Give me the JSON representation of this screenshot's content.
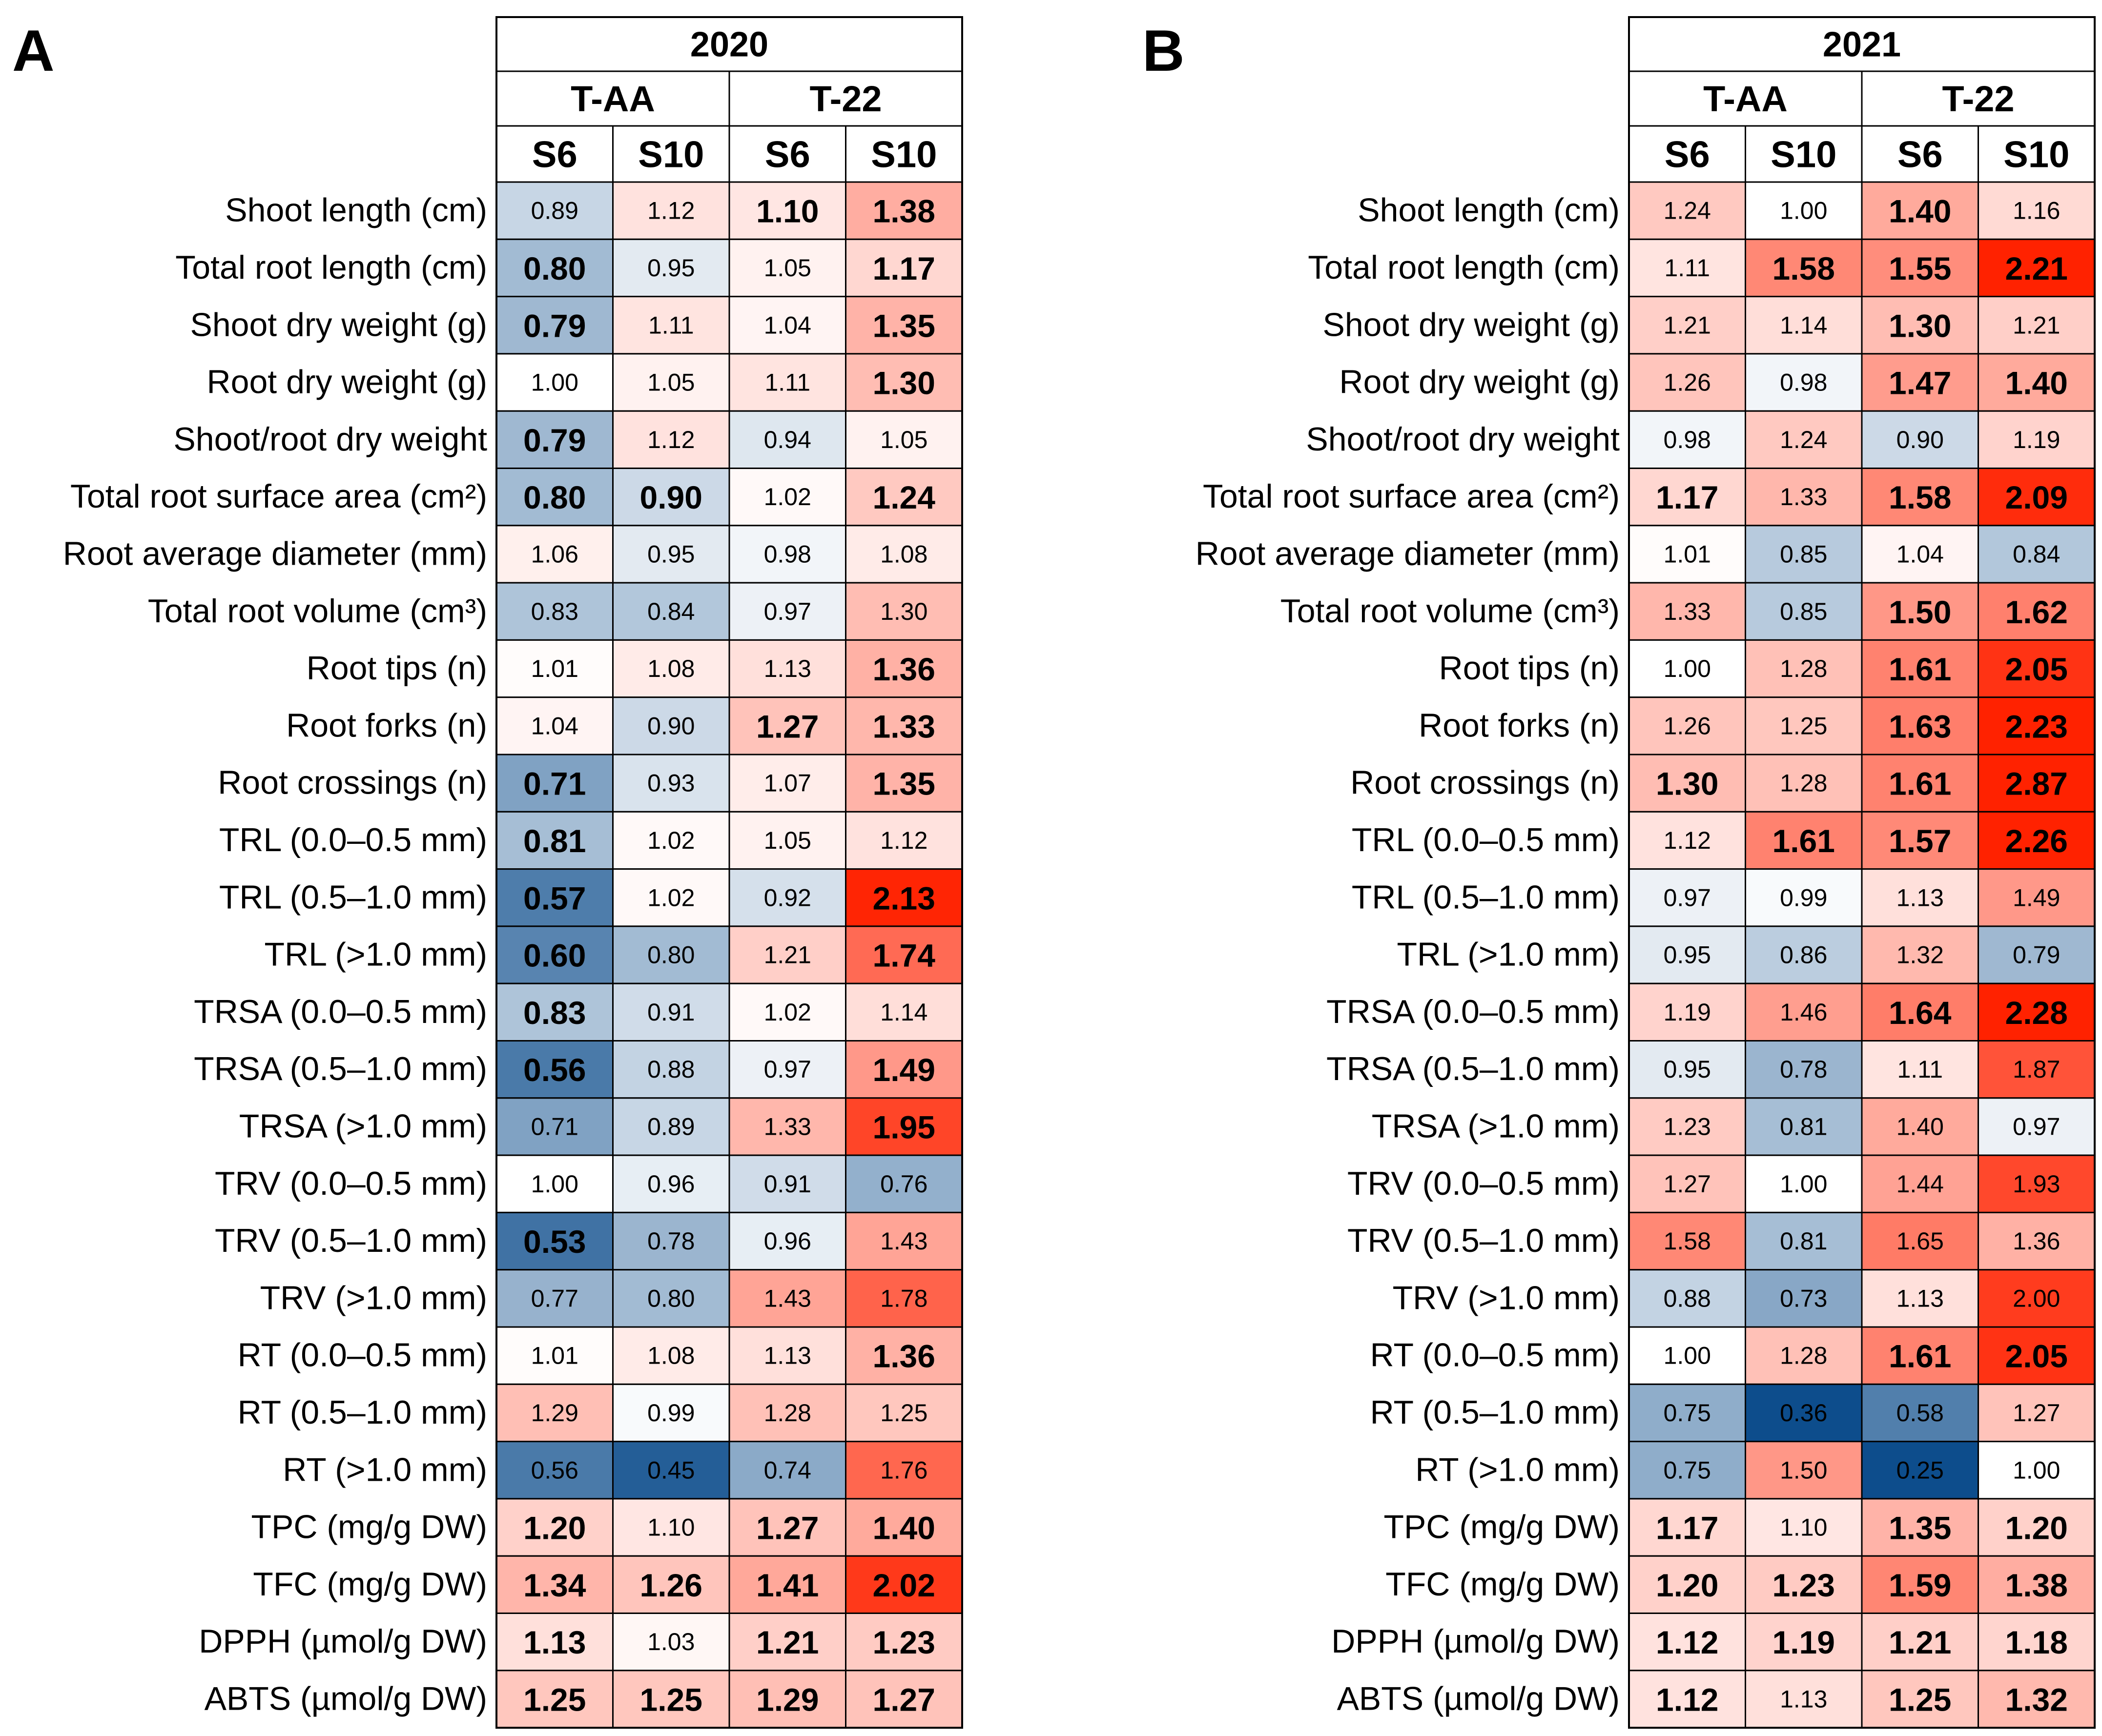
{
  "colors": {
    "low_extreme": "#0d4d8c",
    "mid": "#ffffff",
    "high_extreme": "#ff2200",
    "border": "#000000",
    "text": "#000000"
  },
  "chart_data": [
    {
      "type": "heatmap",
      "panel_label": "A",
      "year": "2020",
      "groups": [
        "T-AA",
        "T-22"
      ],
      "columns": [
        "S6",
        "S10",
        "S6",
        "S10"
      ],
      "rows": [
        "Shoot length (cm)",
        "Total root length (cm)",
        "Shoot dry weight (g)",
        "Root dry weight (g)",
        "Shoot/root dry weight",
        "Total root surface area (cm²)",
        "Root average diameter (mm)",
        "Total root volume (cm³)",
        "Root tips (n)",
        "Root forks (n)",
        "Root crossings (n)",
        "TRL (0.0–0.5 mm)",
        "TRL (0.5–1.0 mm)",
        "TRL (>1.0 mm)",
        "TRSA (0.0–0.5 mm)",
        "TRSA (0.5–1.0 mm)",
        "TRSA (>1.0 mm)",
        "TRV (0.0–0.5 mm)",
        "TRV (0.5–1.0 mm)",
        "TRV (>1.0 mm)",
        "RT (0.0–0.5 mm)",
        "RT (0.5–1.0 mm)",
        "RT (>1.0 mm)",
        "TPC (mg/g DW)",
        "TFC (mg/g DW)",
        "DPPH (µmol/g DW)",
        "ABTS (µmol/g DW)"
      ],
      "values": [
        [
          0.89,
          1.12,
          1.1,
          1.38
        ],
        [
          0.8,
          0.95,
          1.05,
          1.17
        ],
        [
          0.79,
          1.11,
          1.04,
          1.35
        ],
        [
          1.0,
          1.05,
          1.11,
          1.3
        ],
        [
          0.79,
          1.12,
          0.94,
          1.05
        ],
        [
          0.8,
          0.9,
          1.02,
          1.24
        ],
        [
          1.06,
          0.95,
          0.98,
          1.08
        ],
        [
          0.83,
          0.84,
          0.97,
          1.3
        ],
        [
          1.01,
          1.08,
          1.13,
          1.36
        ],
        [
          1.04,
          0.9,
          1.27,
          1.33
        ],
        [
          0.71,
          0.93,
          1.07,
          1.35
        ],
        [
          0.81,
          1.02,
          1.05,
          1.12
        ],
        [
          0.57,
          1.02,
          0.92,
          2.13
        ],
        [
          0.6,
          0.8,
          1.21,
          1.74
        ],
        [
          0.83,
          0.91,
          1.02,
          1.14
        ],
        [
          0.56,
          0.88,
          0.97,
          1.49
        ],
        [
          0.71,
          0.89,
          1.33,
          1.95
        ],
        [
          1.0,
          0.96,
          0.91,
          0.76
        ],
        [
          0.53,
          0.78,
          0.96,
          1.43
        ],
        [
          0.77,
          0.8,
          1.43,
          1.78
        ],
        [
          1.01,
          1.08,
          1.13,
          1.36
        ],
        [
          1.29,
          0.99,
          1.28,
          1.25
        ],
        [
          0.56,
          0.45,
          0.74,
          1.76
        ],
        [
          1.2,
          1.1,
          1.27,
          1.4
        ],
        [
          1.34,
          1.26,
          1.41,
          2.02
        ],
        [
          1.13,
          1.03,
          1.21,
          1.23
        ],
        [
          1.25,
          1.25,
          1.29,
          1.27
        ]
      ],
      "bold": [
        [
          0,
          0,
          1,
          1
        ],
        [
          1,
          0,
          0,
          1
        ],
        [
          1,
          0,
          0,
          1
        ],
        [
          0,
          0,
          0,
          1
        ],
        [
          1,
          0,
          0,
          0
        ],
        [
          1,
          1,
          0,
          1
        ],
        [
          0,
          0,
          0,
          0
        ],
        [
          0,
          0,
          0,
          0
        ],
        [
          0,
          0,
          0,
          1
        ],
        [
          0,
          0,
          1,
          1
        ],
        [
          1,
          0,
          0,
          1
        ],
        [
          1,
          0,
          0,
          0
        ],
        [
          1,
          0,
          0,
          1
        ],
        [
          1,
          0,
          0,
          1
        ],
        [
          1,
          0,
          0,
          0
        ],
        [
          1,
          0,
          0,
          1
        ],
        [
          0,
          0,
          0,
          1
        ],
        [
          0,
          0,
          0,
          0
        ],
        [
          1,
          0,
          0,
          0
        ],
        [
          0,
          0,
          0,
          0
        ],
        [
          0,
          0,
          0,
          1
        ],
        [
          0,
          0,
          0,
          0
        ],
        [
          0,
          0,
          0,
          0
        ],
        [
          1,
          0,
          1,
          1
        ],
        [
          1,
          1,
          1,
          1
        ],
        [
          1,
          0,
          1,
          1
        ],
        [
          1,
          1,
          1,
          1
        ]
      ]
    },
    {
      "type": "heatmap",
      "panel_label": "B",
      "year": "2021",
      "groups": [
        "T-AA",
        "T-22"
      ],
      "columns": [
        "S6",
        "S10",
        "S6",
        "S10"
      ],
      "rows": [
        "Shoot length (cm)",
        "Total root length (cm)",
        "Shoot dry weight (g)",
        "Root dry weight (g)",
        "Shoot/root dry weight",
        "Total root surface area (cm²)",
        "Root average diameter (mm)",
        "Total root volume (cm³)",
        "Root tips (n)",
        "Root forks (n)",
        "Root crossings (n)",
        "TRL (0.0–0.5 mm)",
        "TRL (0.5–1.0 mm)",
        "TRL (>1.0 mm)",
        "TRSA (0.0–0.5 mm)",
        "TRSA (0.5–1.0 mm)",
        "TRSA (>1.0 mm)",
        "TRV (0.0–0.5 mm)",
        "TRV (0.5–1.0 mm)",
        "TRV (>1.0 mm)",
        "RT (0.0–0.5 mm)",
        "RT (0.5–1.0 mm)",
        "RT (>1.0 mm)",
        "TPC (mg/g DW)",
        "TFC (mg/g DW)",
        "DPPH (µmol/g DW)",
        "ABTS (µmol/g DW)"
      ],
      "values": [
        [
          1.24,
          1.0,
          1.4,
          1.16
        ],
        [
          1.11,
          1.58,
          1.55,
          2.21
        ],
        [
          1.21,
          1.14,
          1.3,
          1.21
        ],
        [
          1.26,
          0.98,
          1.47,
          1.4
        ],
        [
          0.98,
          1.24,
          0.9,
          1.19
        ],
        [
          1.17,
          1.33,
          1.58,
          2.09
        ],
        [
          1.01,
          0.85,
          1.04,
          0.84
        ],
        [
          1.33,
          0.85,
          1.5,
          1.62
        ],
        [
          1.0,
          1.28,
          1.61,
          2.05
        ],
        [
          1.26,
          1.25,
          1.63,
          2.23
        ],
        [
          1.3,
          1.28,
          1.61,
          2.87
        ],
        [
          1.12,
          1.61,
          1.57,
          2.26
        ],
        [
          0.97,
          0.99,
          1.13,
          1.49
        ],
        [
          0.95,
          0.86,
          1.32,
          0.79
        ],
        [
          1.19,
          1.46,
          1.64,
          2.28
        ],
        [
          0.95,
          0.78,
          1.11,
          1.87
        ],
        [
          1.23,
          0.81,
          1.4,
          0.97
        ],
        [
          1.27,
          1.0,
          1.44,
          1.93
        ],
        [
          1.58,
          0.81,
          1.65,
          1.36
        ],
        [
          0.88,
          0.73,
          1.13,
          2.0
        ],
        [
          1.0,
          1.28,
          1.61,
          2.05
        ],
        [
          0.75,
          0.36,
          0.58,
          1.27
        ],
        [
          0.75,
          1.5,
          0.25,
          1.0
        ],
        [
          1.17,
          1.1,
          1.35,
          1.2
        ],
        [
          1.2,
          1.23,
          1.59,
          1.38
        ],
        [
          1.12,
          1.19,
          1.21,
          1.18
        ],
        [
          1.12,
          1.13,
          1.25,
          1.32
        ]
      ],
      "bold": [
        [
          0,
          0,
          1,
          0
        ],
        [
          0,
          1,
          1,
          1
        ],
        [
          0,
          0,
          1,
          0
        ],
        [
          0,
          0,
          1,
          1
        ],
        [
          0,
          0,
          0,
          0
        ],
        [
          1,
          0,
          1,
          1
        ],
        [
          0,
          0,
          0,
          0
        ],
        [
          0,
          0,
          1,
          1
        ],
        [
          0,
          0,
          1,
          1
        ],
        [
          0,
          0,
          1,
          1
        ],
        [
          1,
          0,
          1,
          1
        ],
        [
          0,
          1,
          1,
          1
        ],
        [
          0,
          0,
          0,
          0
        ],
        [
          0,
          0,
          0,
          0
        ],
        [
          0,
          0,
          1,
          1
        ],
        [
          0,
          0,
          0,
          0
        ],
        [
          0,
          0,
          0,
          0
        ],
        [
          0,
          0,
          0,
          0
        ],
        [
          0,
          0,
          0,
          0
        ],
        [
          0,
          0,
          0,
          0
        ],
        [
          0,
          0,
          1,
          1
        ],
        [
          0,
          0,
          0,
          0
        ],
        [
          0,
          0,
          0,
          0
        ],
        [
          1,
          0,
          1,
          1
        ],
        [
          1,
          1,
          1,
          1
        ],
        [
          1,
          1,
          1,
          1
        ],
        [
          1,
          0,
          1,
          1
        ]
      ]
    }
  ]
}
